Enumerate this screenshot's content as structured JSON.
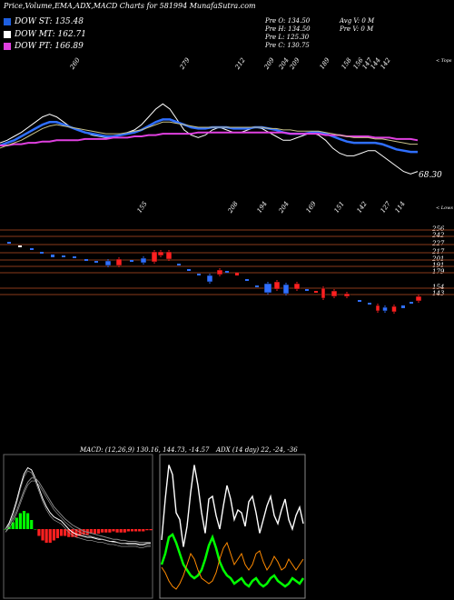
{
  "header": {
    "title": "Price,Volume,EMA,ADX,MACD Charts for 581994 MunafaSutra.com"
  },
  "legend": [
    {
      "label": "DOW ST: 135.48",
      "color": "#1e5fe0"
    },
    {
      "label": "DOW MT: 162.71",
      "color": "#ffffff"
    },
    {
      "label": "DOW PT: 166.89",
      "color": "#e040e0"
    }
  ],
  "ohlc": {
    "open": "Pre O: 134.50",
    "high": "Pre H: 134.50",
    "low": "Pre L: 125.30",
    "close": "Pre C: 130.75",
    "avg_volume": "Avg V: 0 M",
    "volume": "Pre V: 0 M"
  },
  "top_panel": {
    "top_label": "< Tops",
    "low_label": "< Lows",
    "last_price": "68.30",
    "top_values": [
      "260",
      "279",
      "212",
      "209",
      "204",
      "209",
      "189",
      "158",
      "156",
      "147",
      "144",
      "142"
    ],
    "low_values": [
      "155",
      "208",
      "194",
      "204",
      "169",
      "151",
      "142",
      "127",
      "114"
    ]
  },
  "chart_data": [
    {
      "type": "line",
      "panel": "price-ema",
      "x_count": 60,
      "series": [
        {
          "color": "#ffffff",
          "values": [
            50,
            52,
            55,
            58,
            62,
            66,
            70,
            72,
            70,
            66,
            62,
            60,
            58,
            56,
            55,
            54,
            54,
            56,
            58,
            60,
            64,
            70,
            76,
            80,
            76,
            68,
            60,
            56,
            54,
            56,
            60,
            62,
            60,
            58,
            58,
            60,
            62,
            61,
            58,
            55,
            52,
            52,
            54,
            56,
            58,
            56,
            52,
            46,
            42,
            40,
            40,
            42,
            44,
            44,
            40,
            36,
            32,
            28,
            26,
            28
          ]
        },
        {
          "color": "#2f6fff",
          "values": [
            48,
            50,
            52,
            55,
            58,
            61,
            64,
            66,
            66,
            64,
            62,
            60,
            58,
            57,
            56,
            55,
            55,
            56,
            57,
            58,
            60,
            63,
            66,
            68,
            68,
            66,
            64,
            62,
            61,
            61,
            62,
            62,
            62,
            61,
            61,
            61,
            62,
            62,
            61,
            60,
            58,
            57,
            57,
            57,
            58,
            58,
            57,
            55,
            53,
            51,
            50,
            50,
            50,
            50,
            49,
            47,
            45,
            44,
            43,
            43
          ]
        },
        {
          "color": "#e040e0",
          "values": [
            48,
            48,
            49,
            49,
            50,
            50,
            51,
            51,
            52,
            52,
            52,
            52,
            53,
            53,
            53,
            53,
            54,
            54,
            54,
            55,
            55,
            56,
            56,
            57,
            57,
            57,
            57,
            57,
            58,
            58,
            58,
            58,
            58,
            58,
            58,
            58,
            58,
            58,
            58,
            58,
            58,
            57,
            57,
            57,
            57,
            57,
            56,
            56,
            56,
            55,
            55,
            55,
            55,
            54,
            54,
            54,
            53,
            53,
            53,
            52
          ]
        },
        {
          "color": "#c9c38a",
          "values": [
            46,
            48,
            50,
            52,
            55,
            58,
            61,
            63,
            64,
            63,
            62,
            61,
            60,
            59,
            58,
            57,
            57,
            57,
            58,
            59,
            60,
            62,
            64,
            66,
            66,
            65,
            64,
            63,
            62,
            62,
            62,
            62,
            62,
            62,
            62,
            62,
            62,
            62,
            61,
            61,
            60,
            60,
            59,
            59,
            59,
            59,
            58,
            57,
            56,
            55,
            54,
            54,
            54,
            53,
            53,
            52,
            51,
            50,
            49,
            49
          ]
        }
      ]
    },
    {
      "type": "bar",
      "panel": "candles",
      "yticks": [
        "256",
        "242",
        "227",
        "217",
        "201",
        "191",
        "179",
        "154",
        "143"
      ],
      "ylim": [
        140,
        260
      ]
    },
    {
      "type": "line",
      "panel": "macd",
      "label": "MACD: (12,26,9) 130.16, 144.73, -14.57",
      "x_count": 40,
      "series": [
        {
          "color": "#ffffff",
          "values": [
            0,
            6,
            16,
            28,
            42,
            54,
            60,
            58,
            50,
            40,
            30,
            22,
            16,
            12,
            10,
            8,
            4,
            0,
            -3,
            -5,
            -6,
            -7,
            -8,
            -8,
            -9,
            -10,
            -10,
            -11,
            -12,
            -12,
            -13,
            -14,
            -14,
            -14,
            -14,
            -14,
            -15,
            -15,
            -14,
            -14
          ]
        },
        {
          "color": "#888888",
          "values": [
            0,
            4,
            10,
            18,
            28,
            38,
            46,
            50,
            50,
            46,
            40,
            34,
            28,
            22,
            18,
            14,
            10,
            7,
            4,
            2,
            0,
            -2,
            -3,
            -4,
            -5,
            -6,
            -7,
            -8,
            -9,
            -10,
            -10,
            -11,
            -11,
            -12,
            -12,
            -12,
            -13,
            -13,
            -13,
            -13
          ]
        }
      ],
      "histogram": [
        0,
        2,
        6,
        10,
        14,
        16,
        14,
        8,
        0,
        -6,
        -10,
        -12,
        -12,
        -10,
        -8,
        -6,
        -6,
        -7,
        -7,
        -7,
        -6,
        -5,
        -5,
        -4,
        -4,
        -4,
        -3,
        -3,
        -3,
        -2,
        -3,
        -3,
        -3,
        -2,
        -2,
        -2,
        -2,
        -2,
        -1,
        -1
      ]
    },
    {
      "type": "line",
      "panel": "adx",
      "label": "ADX (14 day) 22, -24, -36",
      "x_count": 40,
      "series": [
        {
          "color": "#ffffff",
          "values": [
            40,
            70,
            95,
            88,
            60,
            55,
            35,
            50,
            75,
            95,
            80,
            60,
            45,
            70,
            72,
            58,
            48,
            65,
            80,
            70,
            55,
            62,
            60,
            50,
            68,
            72,
            60,
            45,
            55,
            65,
            72,
            58,
            52,
            62,
            70,
            55,
            48,
            58,
            64,
            52
          ]
        },
        {
          "color": "#00ff00",
          "values": [
            22,
            30,
            42,
            44,
            38,
            30,
            22,
            18,
            14,
            12,
            14,
            18,
            26,
            36,
            42,
            34,
            24,
            18,
            14,
            12,
            8,
            10,
            12,
            8,
            6,
            10,
            12,
            8,
            6,
            8,
            12,
            14,
            10,
            8,
            6,
            8,
            12,
            10,
            8,
            12
          ]
        },
        {
          "color": "#ff8a00",
          "values": [
            20,
            16,
            10,
            6,
            4,
            8,
            14,
            22,
            30,
            26,
            18,
            12,
            10,
            8,
            10,
            16,
            26,
            34,
            38,
            30,
            22,
            26,
            30,
            22,
            18,
            22,
            30,
            32,
            24,
            18,
            22,
            28,
            24,
            18,
            20,
            26,
            22,
            18,
            22,
            26
          ]
        }
      ]
    }
  ]
}
